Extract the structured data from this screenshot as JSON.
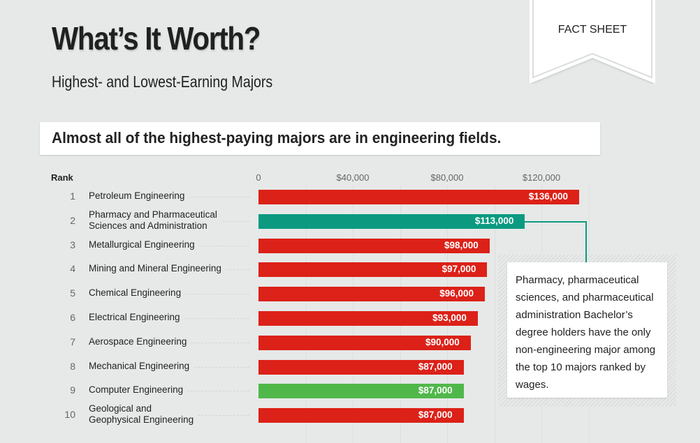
{
  "header": {
    "title": "What’s It Worth?",
    "subtitle": "Highest-  and Lowest-Earning Majors",
    "ribbon_label": "FACT SHEET"
  },
  "banner": {
    "text": "Almost all of the highest-paying majors are in engineering fields."
  },
  "callout": {
    "text": "Pharmacy, pharmaceutical sciences, and pharmaceutical administration Bachelor’s degree holders have the only non-engineering major among the top 10 majors ranked by wages."
  },
  "colors": {
    "engineering": "#dc2118",
    "pharmacy": "#0b9a80",
    "computer": "#50b84a",
    "background": "#e6e9e8"
  },
  "chart_data": {
    "type": "bar",
    "orientation": "horizontal",
    "title": "Almost all of the highest-paying majors are in engineering fields.",
    "rank_header": "Rank",
    "xlim": [
      0,
      136000
    ],
    "x_ticks": [
      {
        "value": 0,
        "label": "0"
      },
      {
        "value": 40000,
        "label": "$40,000"
      },
      {
        "value": 80000,
        "label": "$80,000"
      },
      {
        "value": 120000,
        "label": "$120,000"
      }
    ],
    "gridlines_every": 20000,
    "rows": [
      {
        "rank": "1",
        "label": "Petroleum Engineering",
        "value": 136000,
        "value_label": "$136,000",
        "color": "#dc2118"
      },
      {
        "rank": "2",
        "label": "Pharmacy and Pharmaceutical\nSciences and Administration",
        "value": 113000,
        "value_label": "$113,000",
        "color": "#0b9a80"
      },
      {
        "rank": "3",
        "label": "Metallurgical Engineering",
        "value": 98000,
        "value_label": "$98,000",
        "color": "#dc2118"
      },
      {
        "rank": "4",
        "label": "Mining and Mineral Engineering",
        "value": 97000,
        "value_label": "$97,000",
        "color": "#dc2118"
      },
      {
        "rank": "5",
        "label": "Chemical Engineering",
        "value": 96000,
        "value_label": "$96,000",
        "color": "#dc2118"
      },
      {
        "rank": "6",
        "label": "Electrical Engineering",
        "value": 93000,
        "value_label": "$93,000",
        "color": "#dc2118"
      },
      {
        "rank": "7",
        "label": "Aerospace Engineering",
        "value": 90000,
        "value_label": "$90,000",
        "color": "#dc2118"
      },
      {
        "rank": "8",
        "label": "Mechanical Engineering",
        "value": 87000,
        "value_label": "$87,000",
        "color": "#dc2118"
      },
      {
        "rank": "9",
        "label": "Computer Engineering",
        "value": 87000,
        "value_label": "$87,000",
        "color": "#50b84a"
      },
      {
        "rank": "10",
        "label": "Geological and\nGeophysical Engineering",
        "value": 87000,
        "value_label": "$87,000",
        "color": "#dc2118"
      }
    ]
  }
}
